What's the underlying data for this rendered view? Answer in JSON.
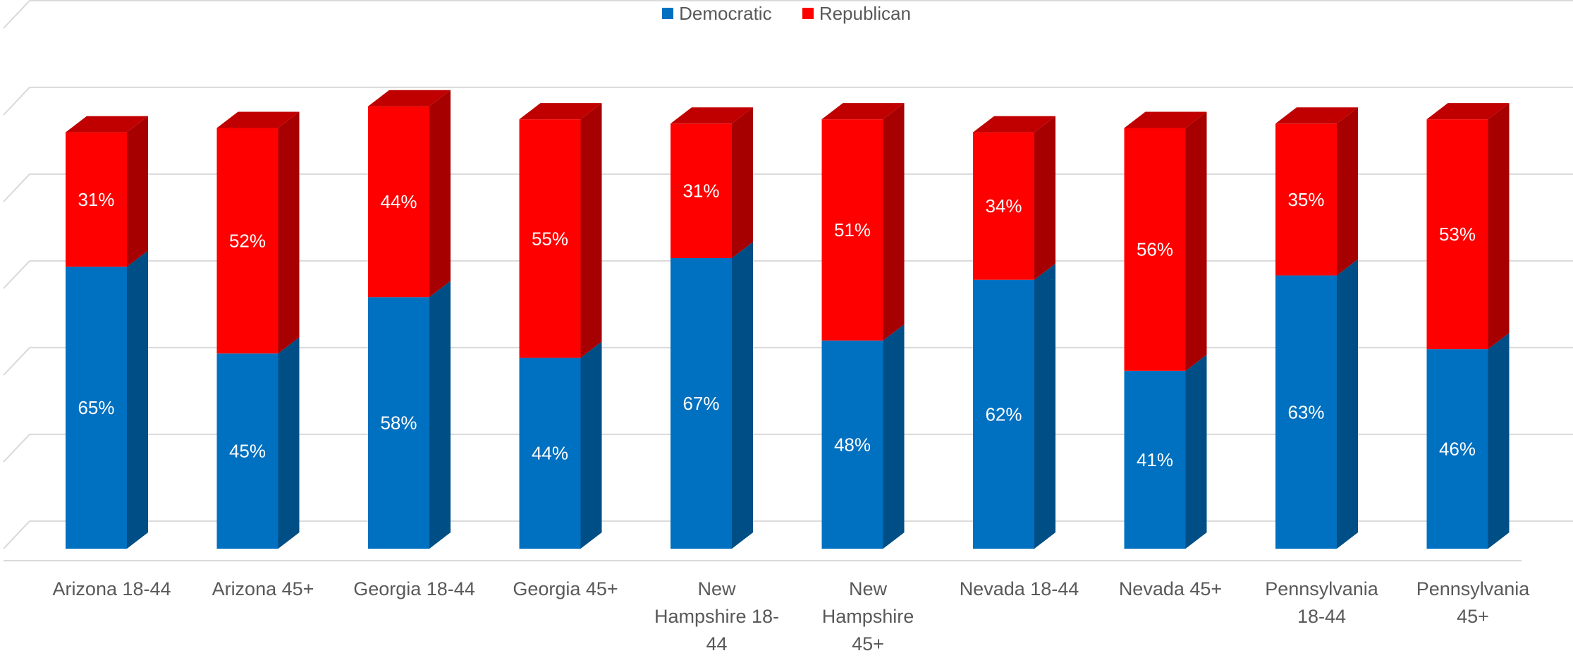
{
  "colors": {
    "democratic": "#0070c0",
    "democratic_side": "#004e86",
    "democratic_top": "#2a88d0",
    "republican": "#ff0000",
    "republican_side": "#a60000",
    "republican_top": "#c00000",
    "grid": "#d9d9d9",
    "label": "#595959"
  },
  "chart_data": {
    "type": "bar",
    "stacked": true,
    "style": "3d-column",
    "legend_position": "top",
    "grid": true,
    "ylim": [
      0,
      100
    ],
    "categories": [
      [
        "Arizona 18-44"
      ],
      [
        "Arizona 45+"
      ],
      [
        "Georgia 18-44"
      ],
      [
        "Georgia 45+"
      ],
      [
        "New",
        "Hampshire 18-",
        "44"
      ],
      [
        "New",
        "Hampshire",
        "45+"
      ],
      [
        "Nevada 18-44"
      ],
      [
        "Nevada 45+"
      ],
      [
        "Pennsylvania",
        "18-44"
      ],
      [
        "Pennsylvania",
        "45+"
      ]
    ],
    "series": [
      {
        "name": "Democratic",
        "values": [
          65,
          45,
          58,
          44,
          67,
          48,
          62,
          41,
          63,
          46
        ],
        "labels": [
          "65%",
          "45%",
          "58%",
          "44%",
          "67%",
          "48%",
          "62%",
          "41%",
          "63%",
          "46%"
        ]
      },
      {
        "name": "Republican",
        "values": [
          31,
          52,
          44,
          55,
          31,
          51,
          34,
          56,
          35,
          53
        ],
        "labels": [
          "31%",
          "52%",
          "44%",
          "55%",
          "31%",
          "51%",
          "34%",
          "56%",
          "35%",
          "53%"
        ]
      }
    ]
  }
}
